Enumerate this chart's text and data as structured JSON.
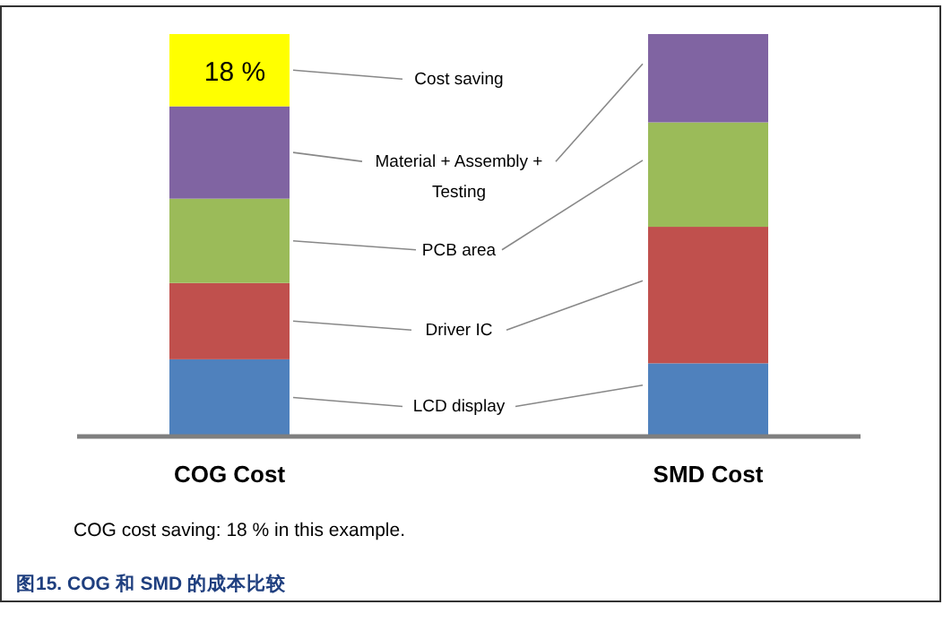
{
  "chart_data": {
    "type": "bar",
    "stacked": true,
    "categories": [
      "COG Cost",
      "SMD Cost"
    ],
    "series": [
      {
        "name": "LCD display",
        "color": "#4f81bd",
        "values": [
          19,
          18
        ]
      },
      {
        "name": "Driver IC",
        "color": "#c0504d",
        "values": [
          19,
          34
        ]
      },
      {
        "name": "PCB area",
        "color": "#9bbb59",
        "values": [
          21,
          26
        ]
      },
      {
        "name": "Material + Assembly + Testing",
        "color": "#8064a2",
        "values": [
          23,
          22
        ]
      },
      {
        "name": "Cost saving",
        "color": "#ffff00",
        "values": [
          18,
          null
        ],
        "value_labels": [
          "18 %",
          null
        ]
      }
    ],
    "annotations": [
      "COG cost saving: 18 % in this example.",
      "图15. COG 和 SMD 的成本比较"
    ]
  }
}
